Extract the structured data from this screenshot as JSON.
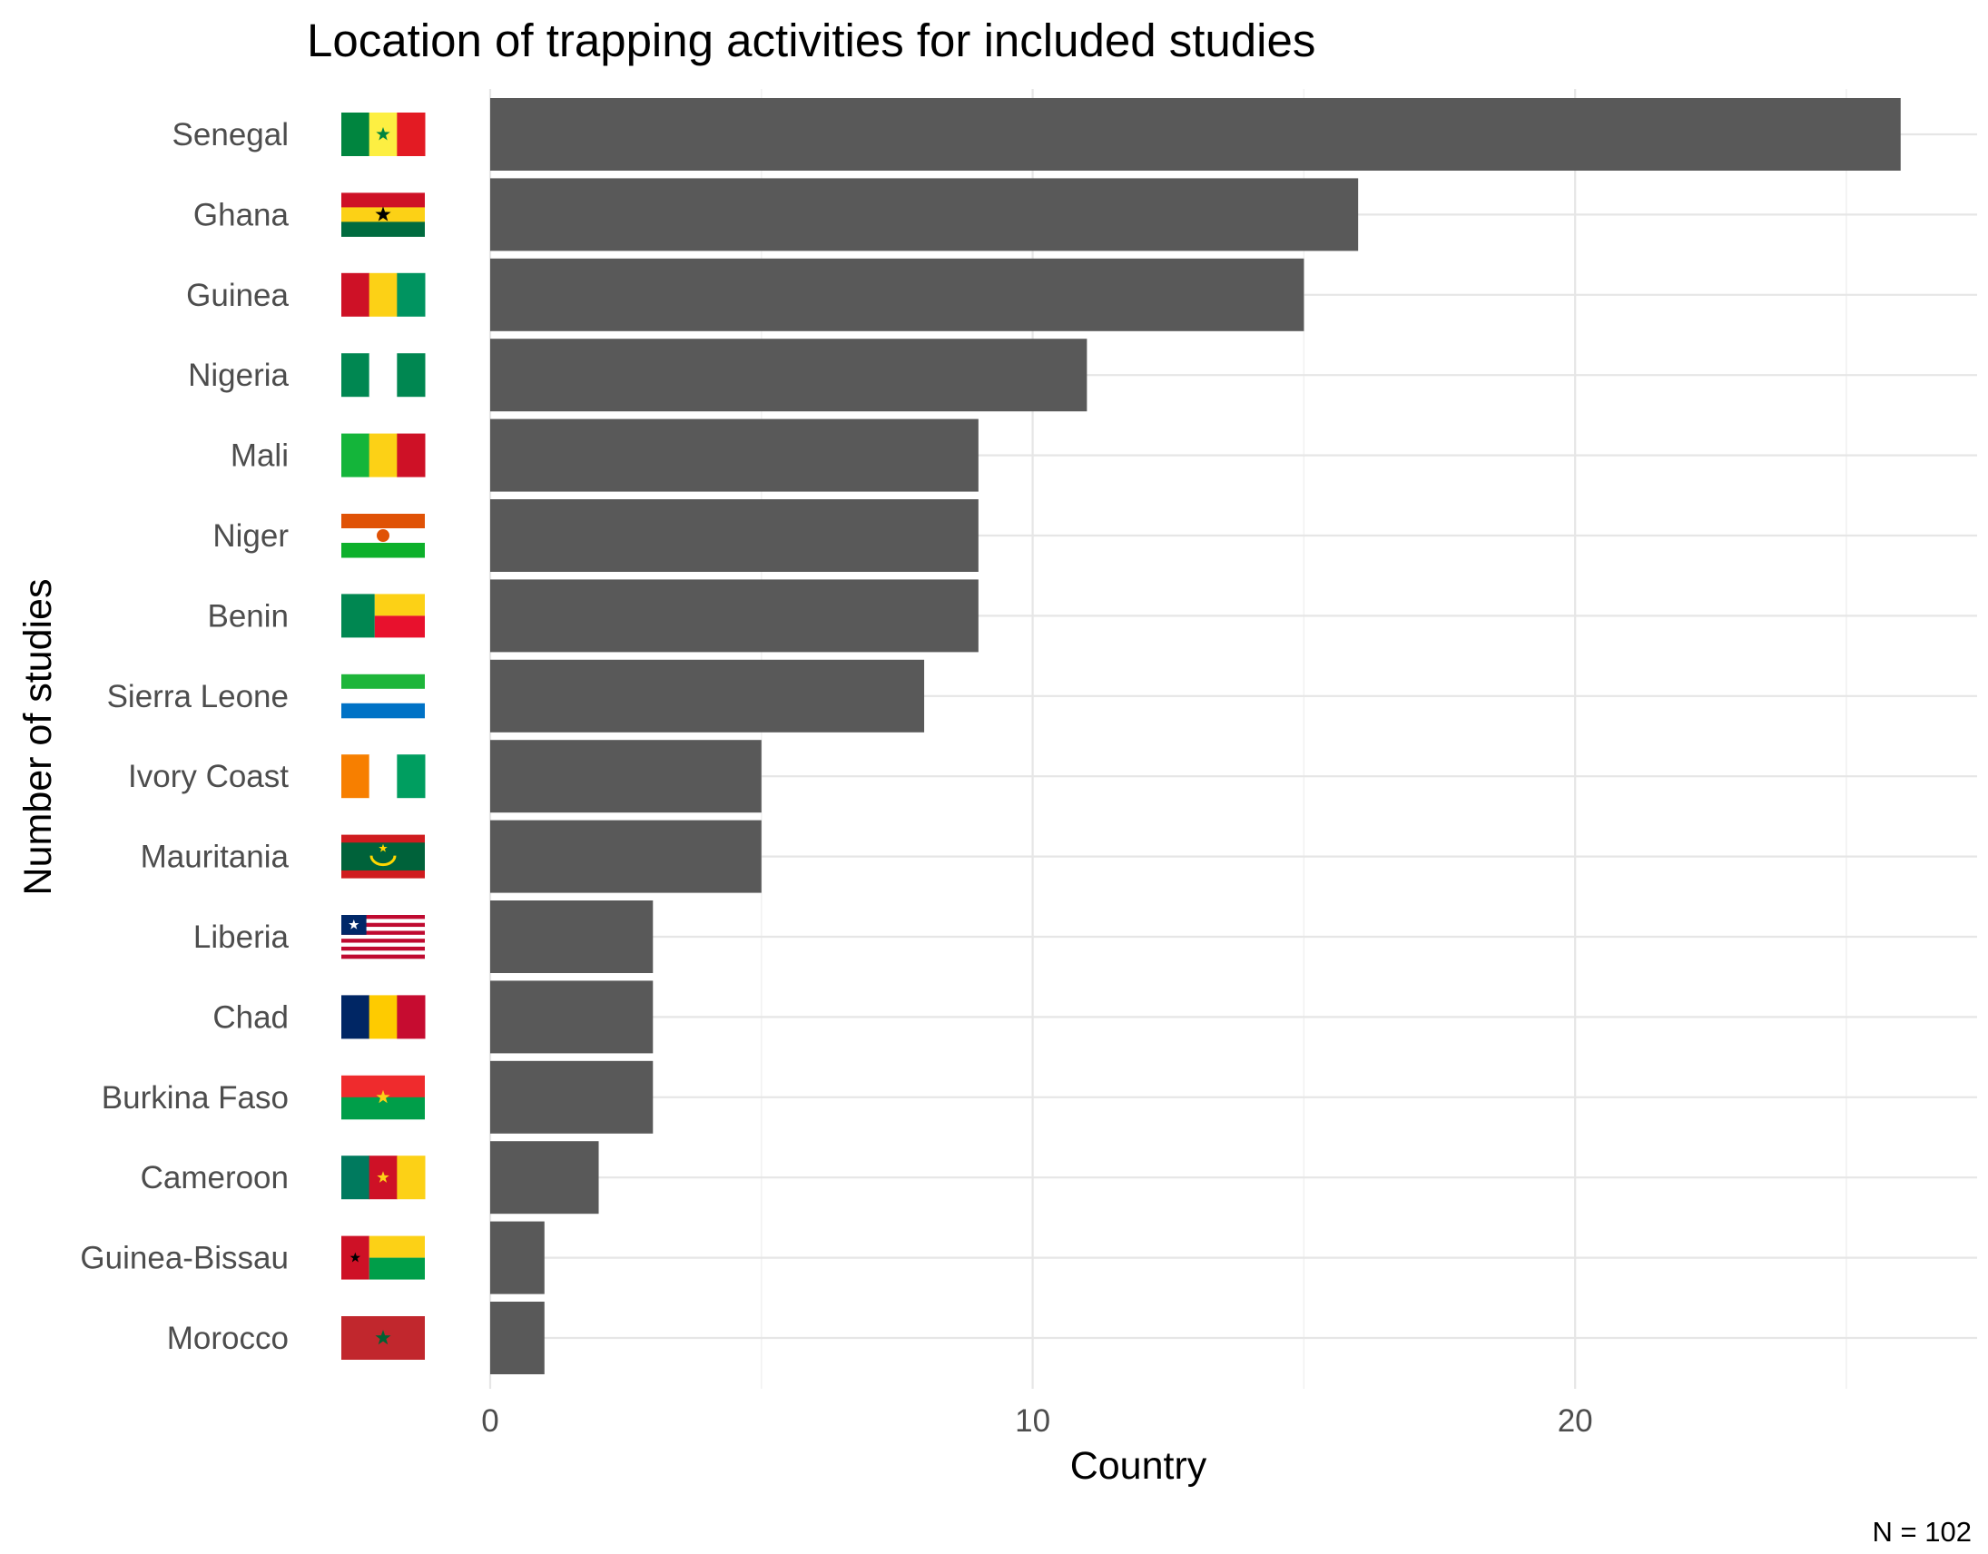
{
  "chart_data": {
    "type": "bar",
    "orientation": "horizontal",
    "title": "Location of trapping activities for included studies",
    "xlabel": "Country",
    "ylabel": "Number of studies",
    "caption": "N = 102",
    "categories": [
      "Senegal",
      "Ghana",
      "Guinea",
      "Nigeria",
      "Mali",
      "Niger",
      "Benin",
      "Sierra Leone",
      "Ivory Coast",
      "Mauritania",
      "Liberia",
      "Chad",
      "Burkina Faso",
      "Cameroon",
      "Guinea-Bissau",
      "Morocco"
    ],
    "values": [
      26,
      16,
      15,
      11,
      9,
      9,
      9,
      8,
      5,
      5,
      3,
      3,
      3,
      2,
      1,
      1
    ],
    "x_ticks": [
      0,
      10,
      20
    ],
    "xlim": [
      0,
      27
    ],
    "bar_color": "#595959",
    "grid": true,
    "legend": "none",
    "flags": {
      "Senegal": "flag-senegal",
      "Ghana": "flag-ghana",
      "Guinea": "flag-guinea",
      "Nigeria": "flag-nigeria",
      "Mali": "flag-mali",
      "Niger": "flag-niger",
      "Benin": "flag-benin",
      "Sierra Leone": "flag-sierra-leone",
      "Ivory Coast": "flag-ivory-coast",
      "Mauritania": "flag-mauritania",
      "Liberia": "flag-liberia",
      "Chad": "flag-chad",
      "Burkina Faso": "flag-burkina-faso",
      "Cameroon": "flag-cameroon",
      "Guinea-Bissau": "flag-guinea-bissau",
      "Morocco": "flag-morocco"
    }
  }
}
